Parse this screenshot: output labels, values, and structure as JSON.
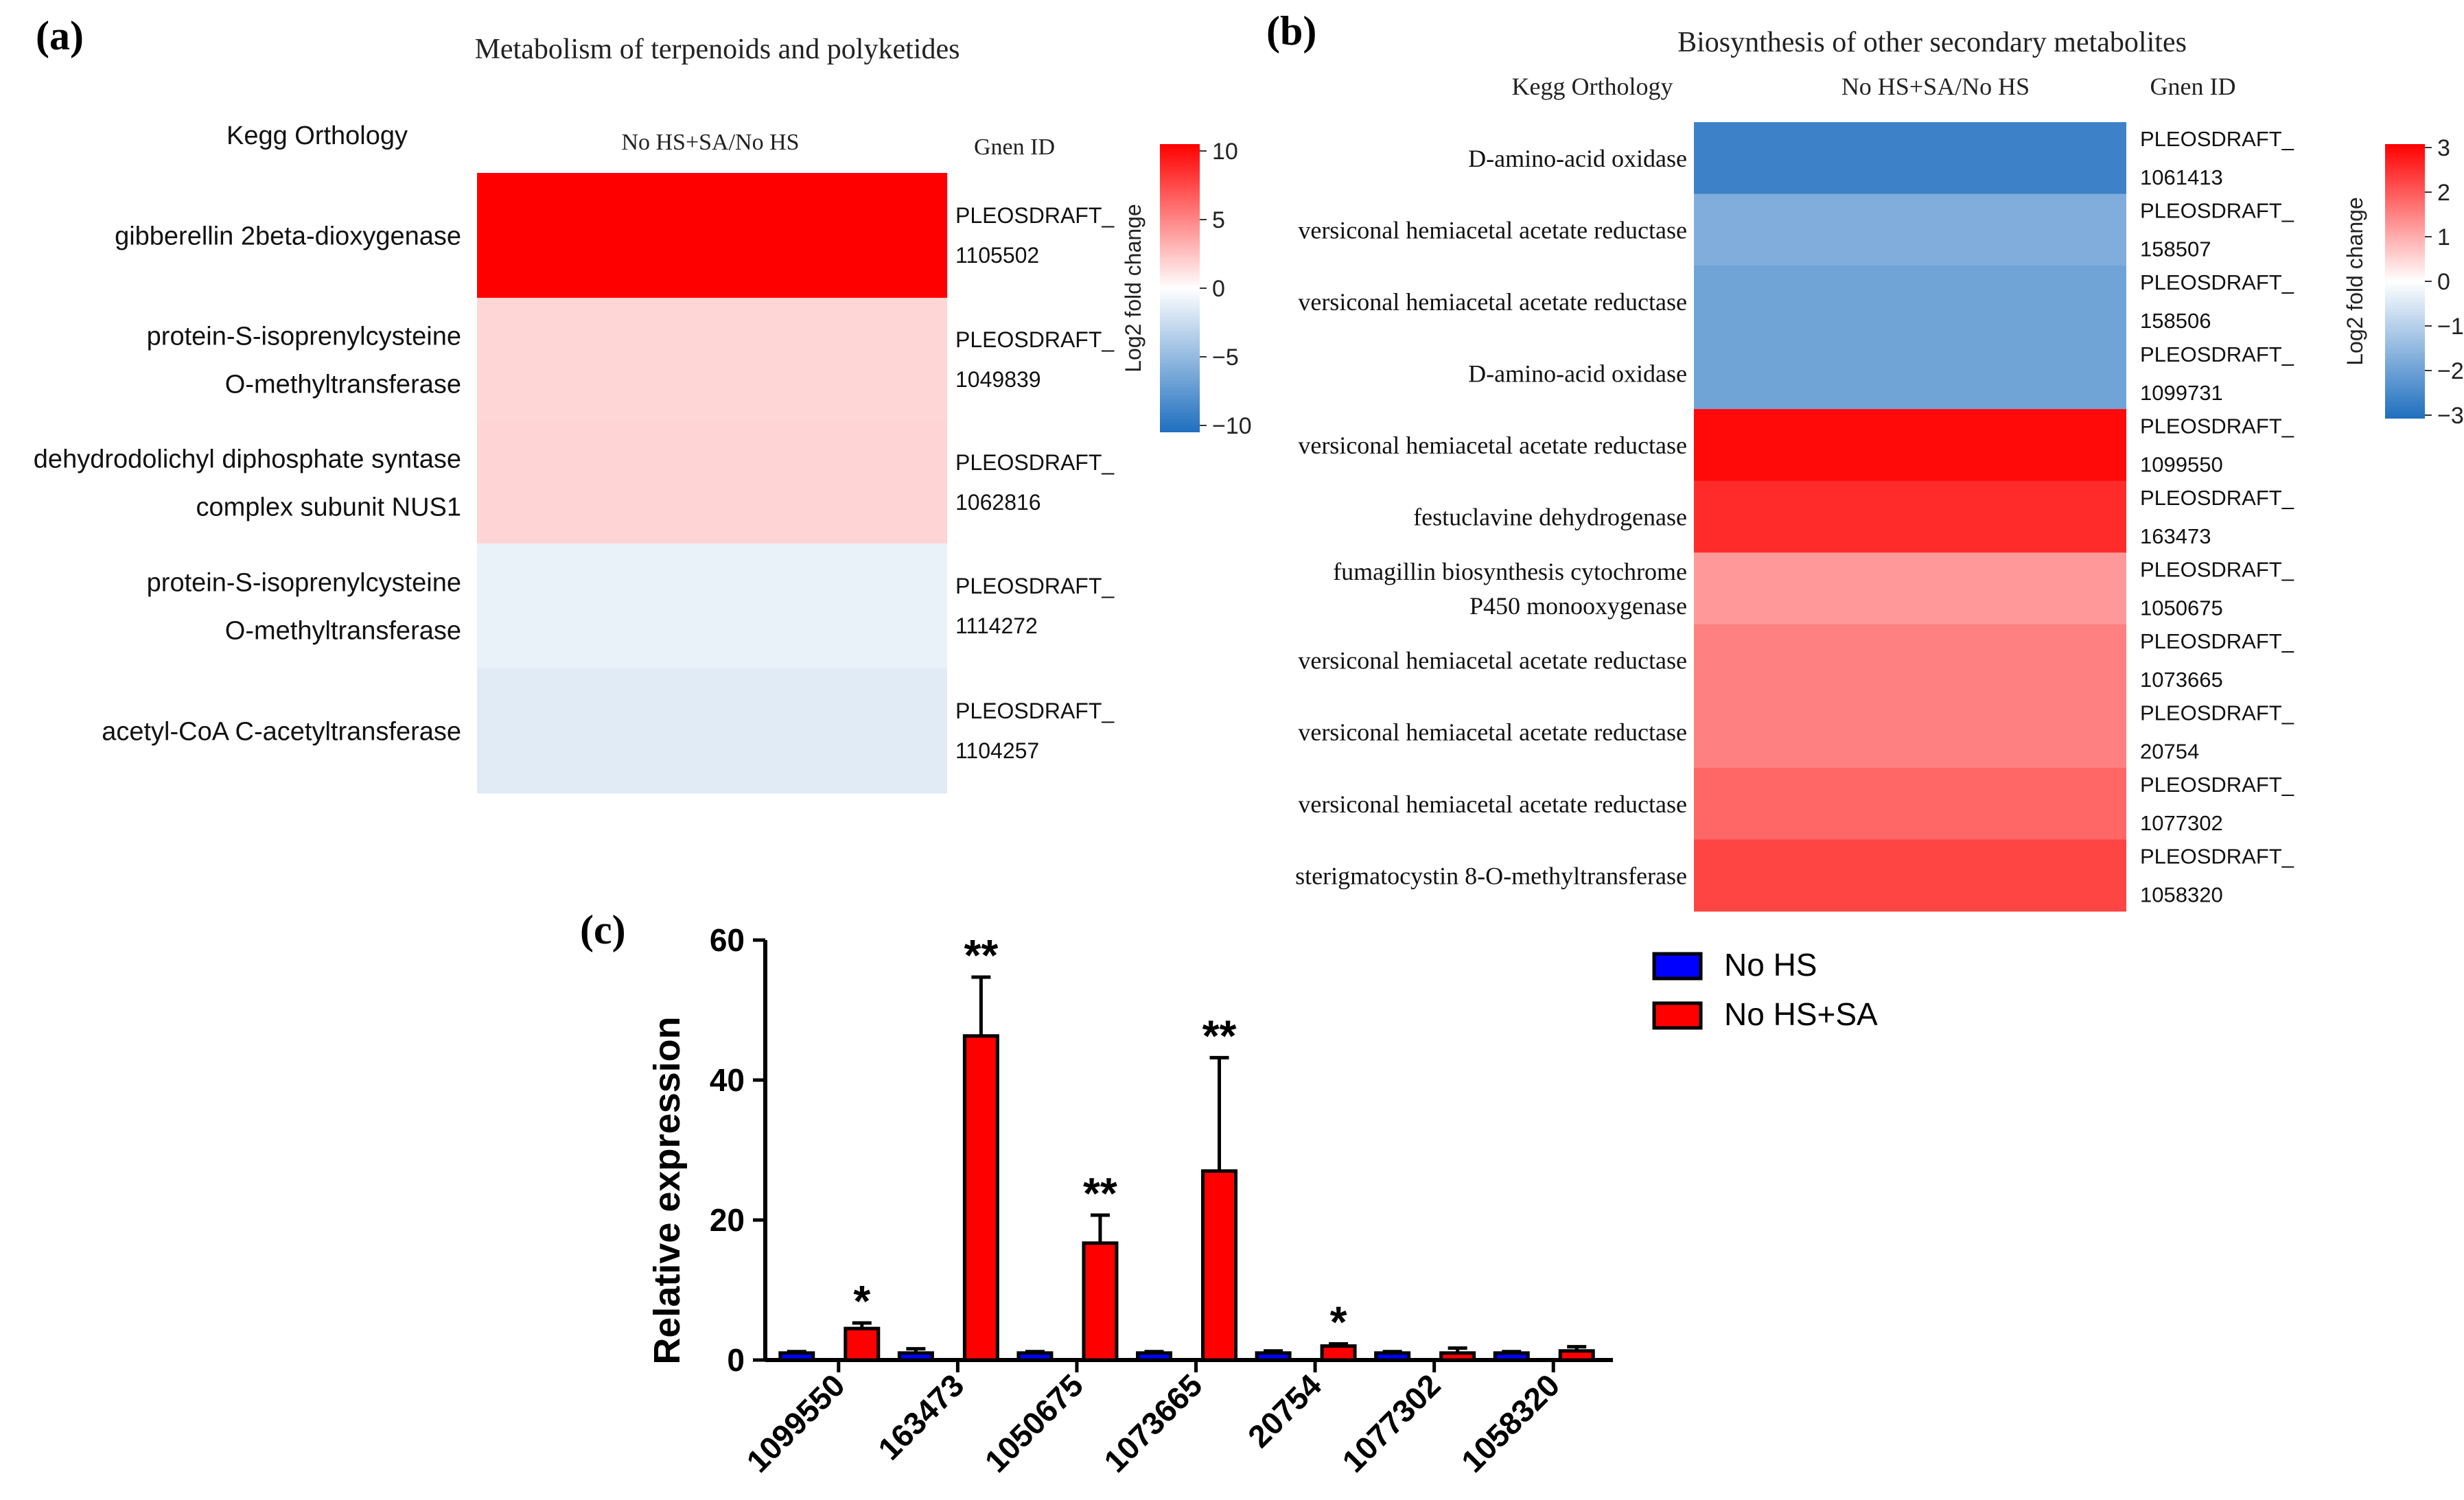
{
  "panel_a": {
    "label": "(a)",
    "title": "Metabolism of terpenoids and polyketides",
    "col_kegg": "Kegg Orthology",
    "col_condition": "No HS+SA/No HS",
    "col_gene": "Gnen ID",
    "colorbar_title": "Log2 fold change",
    "colorbar_ticks": [
      "10",
      "5",
      "0",
      "−5",
      "−10"
    ]
  },
  "panel_b": {
    "label": "(b)",
    "title": "Biosynthesis of other secondary metabolites",
    "col_kegg": "Kegg Orthology",
    "col_condition": "No HS+SA/No HS",
    "col_gene": "Gnen ID",
    "colorbar_title": "Log2 fold change",
    "colorbar_ticks": [
      "3",
      "2",
      "1",
      "0",
      "−1",
      "−2",
      "−3"
    ]
  },
  "panel_c": {
    "label": "(c)"
  },
  "chart_data": [
    {
      "type": "heatmap",
      "panel": "(a)",
      "title": "Metabolism of terpenoids and polyketides",
      "column": "No HS+SA/No HS",
      "row_label_header": "Kegg Orthology",
      "gene_header": "Gnen ID",
      "rows": [
        {
          "lines": [
            "gibberellin 2beta-dioxygenase"
          ],
          "gene": [
            "PLEOSDRAFT_",
            "1105502"
          ],
          "value": 10
        },
        {
          "lines": [
            "protein-S-isoprenylcysteine",
            "O-methyltransferase"
          ],
          "gene": [
            "PLEOSDRAFT_",
            "1049839"
          ],
          "value": 1.6
        },
        {
          "lines": [
            "dehydrodolichyl diphosphate syntase",
            "complex subunit NUS1"
          ],
          "gene": [
            "PLEOSDRAFT_",
            "1062816"
          ],
          "value": 1.7
        },
        {
          "lines": [
            "protein-S-isoprenylcysteine",
            "O-methyltransferase"
          ],
          "gene": [
            "PLEOSDRAFT_",
            "1114272"
          ],
          "value": -1.0
        },
        {
          "lines": [
            "acetyl-CoA C-acetyltransferase"
          ],
          "gene": [
            "PLEOSDRAFT_",
            "1104257"
          ],
          "value": -1.4
        }
      ],
      "colorbar": {
        "label": "Log2 fold change",
        "range": [
          -10,
          10
        ],
        "ticks": [
          10,
          5,
          0,
          -5,
          -10
        ]
      }
    },
    {
      "type": "heatmap",
      "panel": "(b)",
      "title": "Biosynthesis of other secondary metabolites",
      "column": "No HS+SA/No HS",
      "row_label_header": "Kegg Orthology",
      "gene_header": "Gnen ID",
      "rows": [
        {
          "lines": [
            "D-amino-acid oxidase"
          ],
          "gene": [
            "PLEOSDRAFT_",
            "1061413"
          ],
          "value": -2.6
        },
        {
          "lines": [
            "versiconal hemiacetal acetate reductase"
          ],
          "gene": [
            "PLEOSDRAFT_",
            "158507"
          ],
          "value": -1.7
        },
        {
          "lines": [
            "versiconal hemiacetal acetate reductase"
          ],
          "gene": [
            "PLEOSDRAFT_",
            "158506"
          ],
          "value": -1.9
        },
        {
          "lines": [
            "D-amino-acid oxidase"
          ],
          "gene": [
            "PLEOSDRAFT_",
            "1099731"
          ],
          "value": -1.9
        },
        {
          "lines": [
            "versiconal hemiacetal acetate reductase"
          ],
          "gene": [
            "PLEOSDRAFT_",
            "1099550"
          ],
          "value": 2.9
        },
        {
          "lines": [
            "festuclavine dehydrogenase"
          ],
          "gene": [
            "PLEOSDRAFT_",
            "163473"
          ],
          "value": 2.5
        },
        {
          "lines": [
            "fumagillin biosynthesis cytochrome",
            "P450 monooxygenase"
          ],
          "gene": [
            "PLEOSDRAFT_",
            "1050675"
          ],
          "value": 1.2
        },
        {
          "lines": [
            "versiconal hemiacetal acetate reductase"
          ],
          "gene": [
            "PLEOSDRAFT_",
            "1073665"
          ],
          "value": 1.5
        },
        {
          "lines": [
            "versiconal hemiacetal acetate reductase"
          ],
          "gene": [
            "PLEOSDRAFT_",
            "20754"
          ],
          "value": 1.5
        },
        {
          "lines": [
            "versiconal hemiacetal acetate reductase"
          ],
          "gene": [
            "PLEOSDRAFT_",
            "1077302"
          ],
          "value": 1.8
        },
        {
          "lines": [
            "sterigmatocystin 8-O-methyltransferase"
          ],
          "gene": [
            "PLEOSDRAFT_",
            "1058320"
          ],
          "value": 2.2
        }
      ],
      "colorbar": {
        "label": "Log2 fold change",
        "range": [
          -3,
          3
        ],
        "ticks": [
          3,
          2,
          1,
          0,
          -1,
          -2,
          -3
        ]
      }
    },
    {
      "type": "bar",
      "panel": "(c)",
      "ylabel": "Relative expression",
      "xlabel": "",
      "ylim": [
        0,
        60
      ],
      "yticks": [
        0,
        20,
        40,
        60
      ],
      "categories": [
        "1099550",
        "163473",
        "1050675",
        "1073665",
        "20754",
        "1077302",
        "1058320"
      ],
      "series": [
        {
          "name": "No HS",
          "color": "#0000ff",
          "values": [
            1,
            1,
            1,
            1,
            1,
            1,
            1
          ],
          "errors": [
            0.2,
            0.6,
            0.2,
            0.2,
            0.3,
            0.2,
            0.2
          ]
        },
        {
          "name": "No HS+SA",
          "color": "#ff0000",
          "values": [
            4.5,
            46.3,
            16.7,
            27.0,
            2.0,
            1.0,
            1.3
          ],
          "errors": [
            0.8,
            8.4,
            4.0,
            16.2,
            0.3,
            0.7,
            0.6
          ]
        }
      ],
      "annotations": [
        "*",
        "**",
        "**",
        "**",
        "*",
        "",
        ""
      ],
      "legend": {
        "position": "top-right",
        "entries": [
          "No HS",
          "No HS+SA"
        ]
      }
    }
  ]
}
